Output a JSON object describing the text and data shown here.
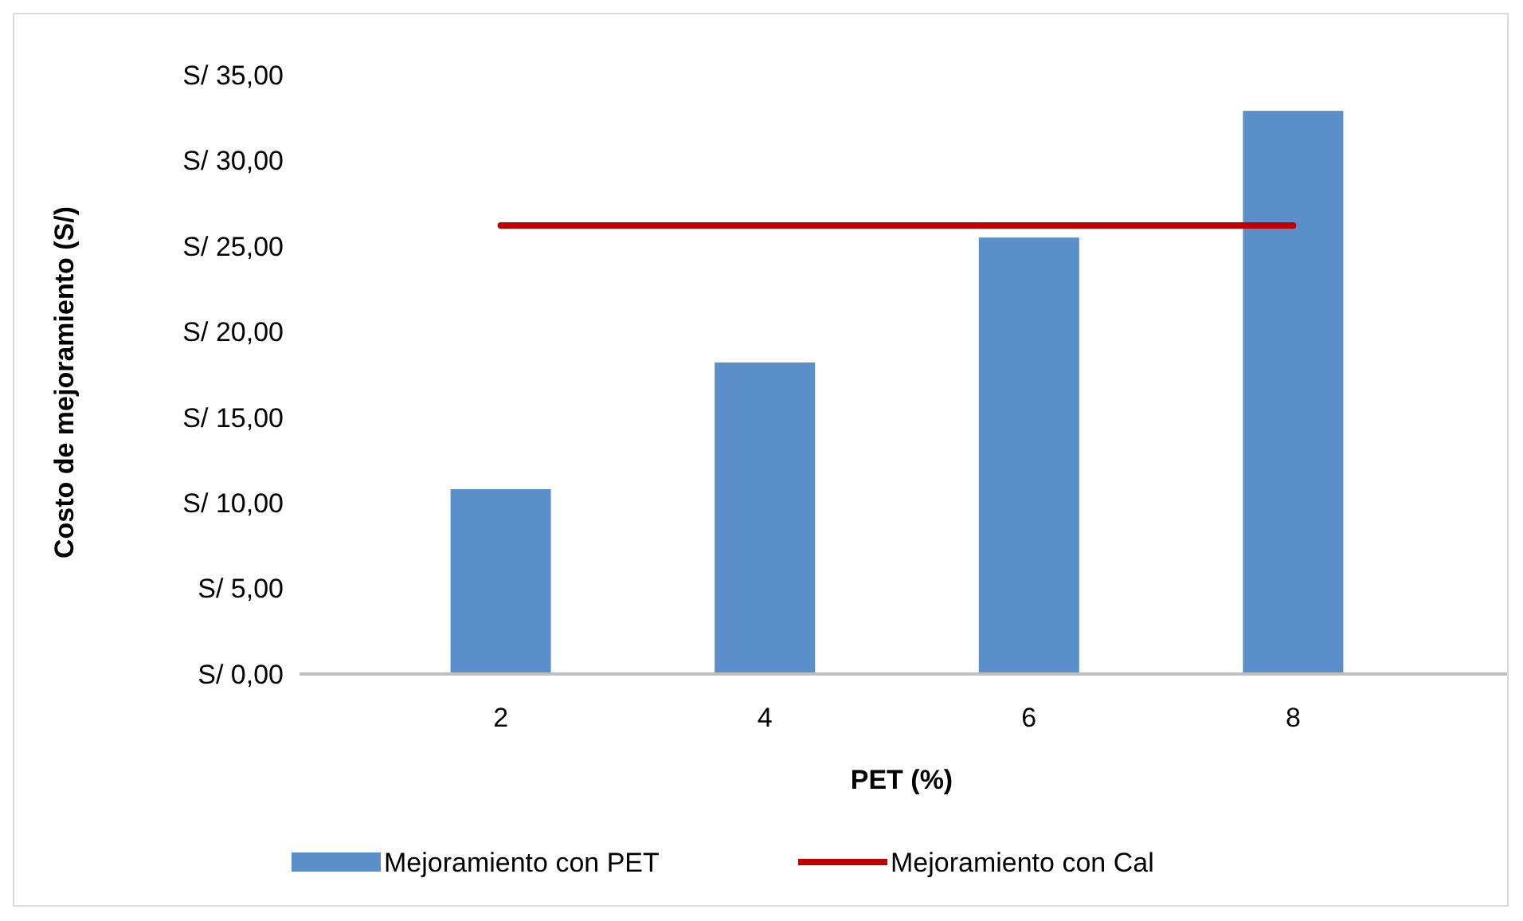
{
  "chart_data": {
    "type": "bar",
    "xlabel": "PET (%)",
    "ylabel": "Costo de mejoramiento (S/)",
    "categories": [
      "2",
      "4",
      "6",
      "8"
    ],
    "series": [
      {
        "name": "Mejoramiento con PET",
        "color": "#5b8fc9",
        "values": [
          10.8,
          18.2,
          25.5,
          32.9
        ]
      },
      {
        "name": "Mejoramiento con Cal",
        "type": "line",
        "color": "#c00000",
        "values": [
          26.2,
          26.2,
          26.2,
          26.2
        ]
      }
    ],
    "ylim": [
      0,
      35
    ],
    "yticks": [
      {
        "value": 0,
        "label": "S/ 0,00"
      },
      {
        "value": 5,
        "label": "S/ 5,00"
      },
      {
        "value": 10,
        "label": "S/ 10,00"
      },
      {
        "value": 15,
        "label": "S/ 15,00"
      },
      {
        "value": 20,
        "label": "S/ 20,00"
      },
      {
        "value": 25,
        "label": "S/ 25,00"
      },
      {
        "value": 30,
        "label": "S/ 30,00"
      },
      {
        "value": 35,
        "label": "S/ 35,00"
      }
    ],
    "grid": false,
    "legend": "bottom",
    "marker": "none"
  }
}
